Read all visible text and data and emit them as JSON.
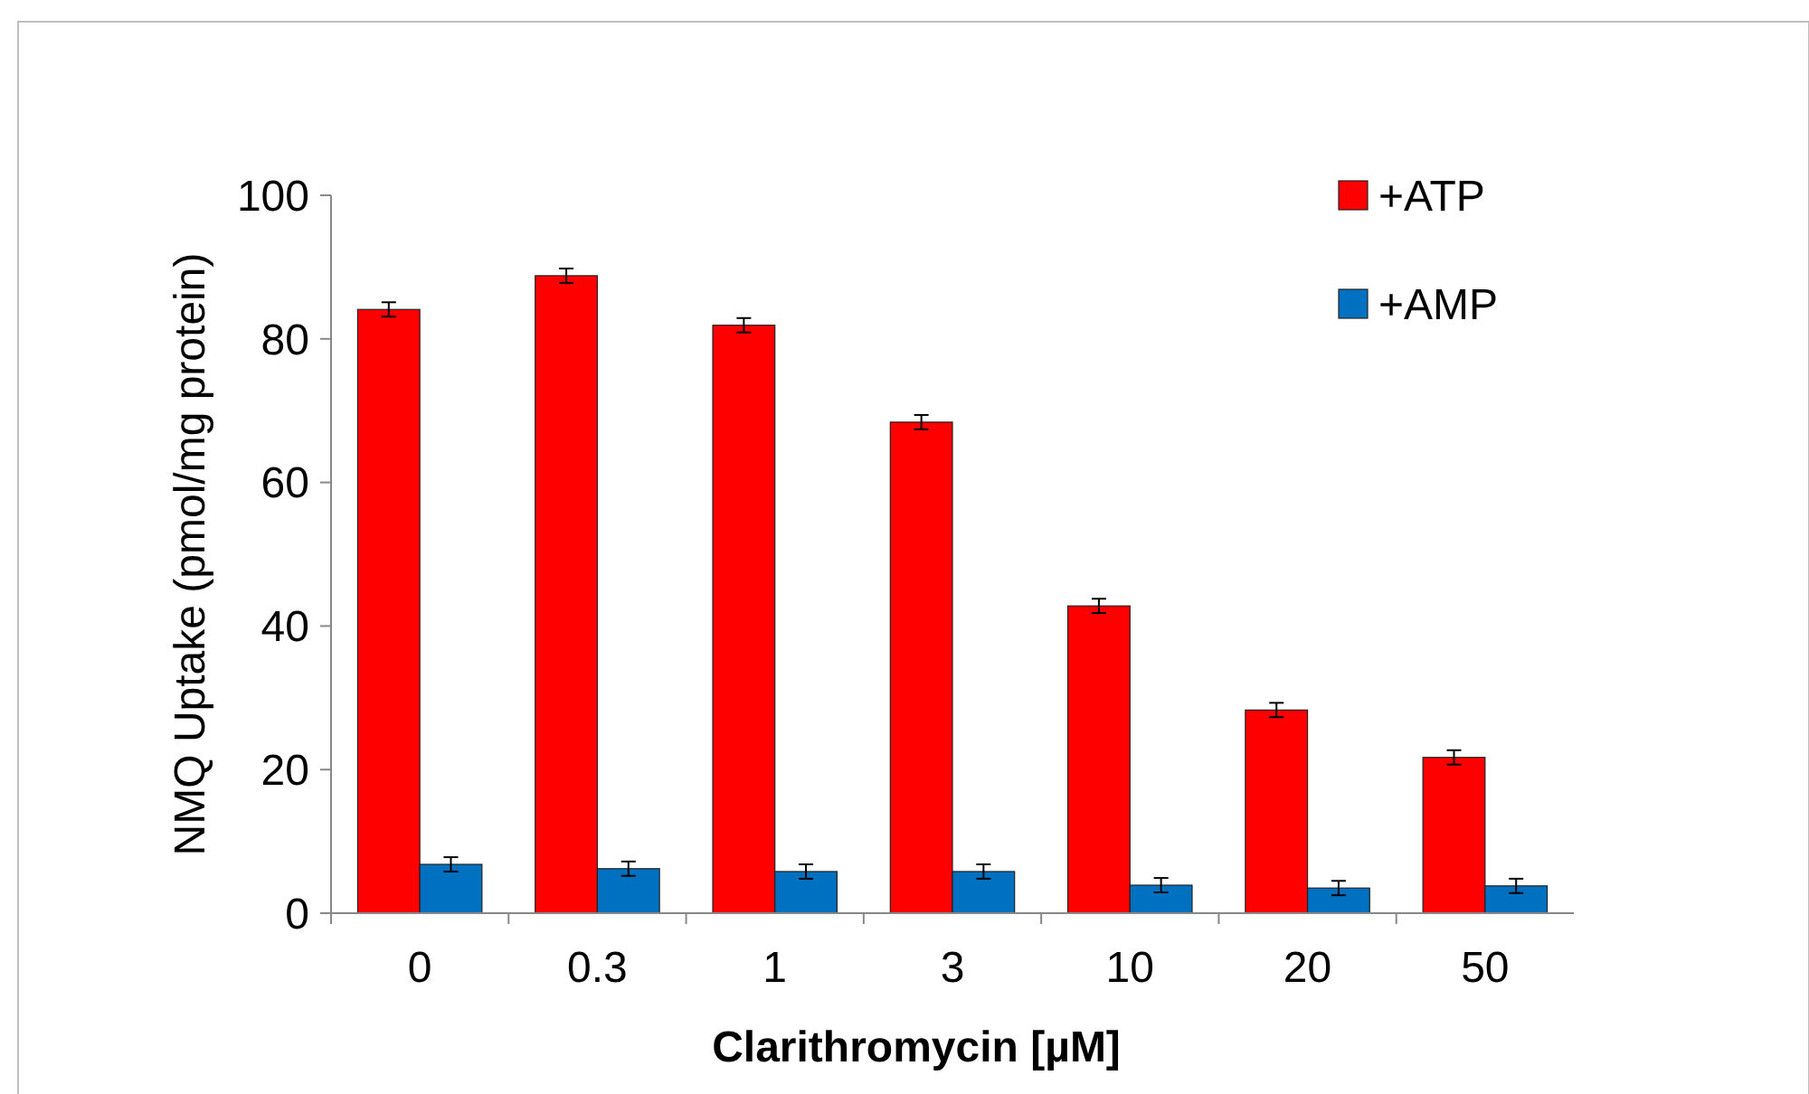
{
  "chart_data": {
    "type": "bar",
    "xlabel": "Clarithromycin  [µM]",
    "ylabel": "NMQ Uptake (pmol/mg protein)",
    "categories": [
      "0",
      "0.3",
      "1",
      "3",
      "10",
      "20",
      "50"
    ],
    "series": [
      {
        "name": "+ATP",
        "color": "#ff0000",
        "values": [
          84.1,
          88.8,
          81.9,
          68.4,
          42.8,
          28.3,
          21.7
        ],
        "errors": [
          1,
          1,
          1,
          1,
          1,
          1,
          1
        ]
      },
      {
        "name": "+AMP",
        "color": "#0070c0",
        "values": [
          6.8,
          6.2,
          5.8,
          5.8,
          3.9,
          3.5,
          3.8
        ],
        "errors": [
          1,
          1,
          1,
          1,
          1,
          1,
          1
        ]
      }
    ],
    "ylim": [
      0,
      100
    ],
    "yticks": [
      0,
      20,
      40,
      60,
      80,
      100
    ],
    "grid": false,
    "legend": "top right"
  }
}
